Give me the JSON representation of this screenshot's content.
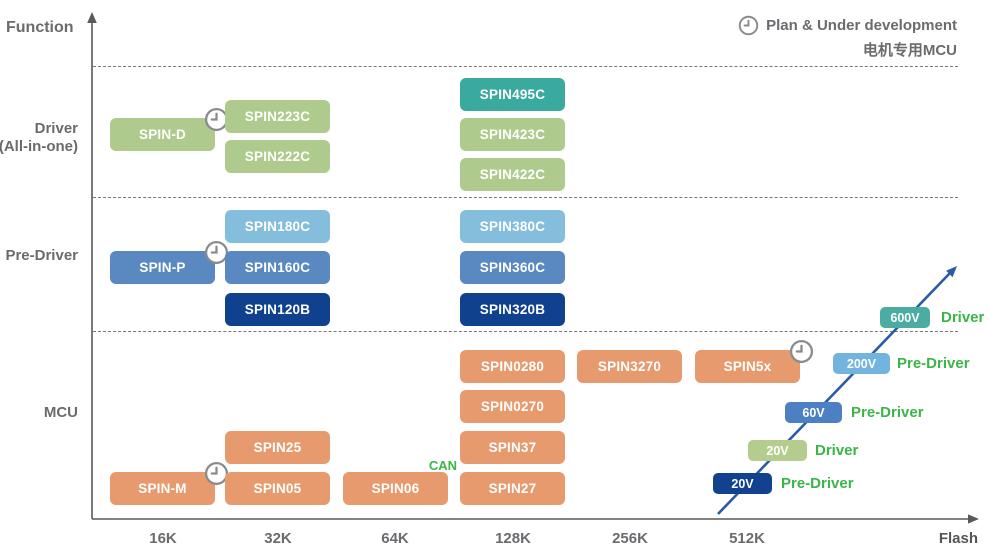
{
  "palette": {
    "green": "#aecb8d",
    "teal": "#3aa99e",
    "light_blue": "#85bddd",
    "mid_blue": "#5a88c0",
    "navy": "#10418f",
    "orange": "#e79a6d",
    "ladder_navy": "#12418f",
    "ladder_green": "#b4cd8f",
    "ladder_blue": "#4d80c3",
    "ladder_light_blue": "#72b4dd",
    "ladder_teal": "#4bada1",
    "arrow_blue": "#2b5aa8",
    "role_green": "#3bb44a",
    "text_gray": "#6a6b6e",
    "axis_gray": "#58595b"
  },
  "chart_data": {
    "type": "scatter",
    "xlabel": "Flash",
    "ylabel": "Function",
    "x_ticks": [
      "16K",
      "32K",
      "64K",
      "128K",
      "256K",
      "512K"
    ],
    "rows": [
      {
        "id": "driver",
        "label_lines": [
          "Driver",
          "(All-in-one)"
        ]
      },
      {
        "id": "pre_driver",
        "label_lines": [
          "Pre-Driver"
        ]
      },
      {
        "id": "mcu",
        "label_lines": [
          "MCU"
        ]
      }
    ],
    "legend": {
      "label": "Plan & Under development",
      "subtitle": "电机专用MCU"
    },
    "products": [
      {
        "label": "SPIN-D",
        "function": "Driver (All-in-one)",
        "flash": "16K",
        "color": "green",
        "planned": true
      },
      {
        "label": "SPIN223C",
        "function": "Driver (All-in-one)",
        "flash": "32K",
        "color": "green"
      },
      {
        "label": "SPIN222C",
        "function": "Driver (All-in-one)",
        "flash": "32K",
        "color": "green"
      },
      {
        "label": "SPIN495C",
        "function": "Driver (All-in-one)",
        "flash": "128K",
        "color": "teal"
      },
      {
        "label": "SPIN423C",
        "function": "Driver (All-in-one)",
        "flash": "128K",
        "color": "green"
      },
      {
        "label": "SPIN422C",
        "function": "Driver (All-in-one)",
        "flash": "128K",
        "color": "green"
      },
      {
        "label": "SPIN-P",
        "function": "Pre-Driver",
        "flash": "16K",
        "color": "mid_blue",
        "planned": true
      },
      {
        "label": "SPIN180C",
        "function": "Pre-Driver",
        "flash": "32K",
        "color": "light_blue"
      },
      {
        "label": "SPIN160C",
        "function": "Pre-Driver",
        "flash": "32K",
        "color": "mid_blue"
      },
      {
        "label": "SPIN120B",
        "function": "Pre-Driver",
        "flash": "32K",
        "color": "navy"
      },
      {
        "label": "SPIN380C",
        "function": "Pre-Driver",
        "flash": "128K",
        "color": "light_blue"
      },
      {
        "label": "SPIN360C",
        "function": "Pre-Driver",
        "flash": "128K",
        "color": "mid_blue"
      },
      {
        "label": "SPIN320B",
        "function": "Pre-Driver",
        "flash": "128K",
        "color": "navy"
      },
      {
        "label": "SPIN-M",
        "function": "MCU",
        "flash": "16K",
        "color": "orange",
        "planned": true
      },
      {
        "label": "SPIN25",
        "function": "MCU",
        "flash": "32K",
        "color": "orange"
      },
      {
        "label": "SPIN05",
        "function": "MCU",
        "flash": "32K",
        "color": "orange"
      },
      {
        "label": "SPIN06",
        "function": "MCU",
        "flash": "64K",
        "color": "orange",
        "tag": "CAN"
      },
      {
        "label": "SPIN27",
        "function": "MCU",
        "flash": "128K",
        "color": "orange"
      },
      {
        "label": "SPIN37",
        "function": "MCU",
        "flash": "128K",
        "color": "orange"
      },
      {
        "label": "SPIN0270",
        "function": "MCU",
        "flash": "128K",
        "color": "orange"
      },
      {
        "label": "SPIN0280",
        "function": "MCU",
        "flash": "128K",
        "color": "orange"
      },
      {
        "label": "SPIN3270",
        "function": "MCU",
        "flash": "256K",
        "color": "orange"
      },
      {
        "label": "SPIN5x",
        "function": "MCU",
        "flash": "512K",
        "color": "orange",
        "planned": true
      }
    ],
    "voltage_ladder": [
      {
        "voltage": "20V",
        "role": "Pre-Driver",
        "color": "ladder_navy"
      },
      {
        "voltage": "20V",
        "role": "Driver",
        "color": "ladder_green"
      },
      {
        "voltage": "60V",
        "role": "Pre-Driver",
        "color": "ladder_blue"
      },
      {
        "voltage": "200V",
        "role": "Pre-Driver",
        "color": "ladder_light_blue"
      },
      {
        "voltage": "600V",
        "role": "Driver",
        "color": "ladder_teal"
      }
    ]
  }
}
